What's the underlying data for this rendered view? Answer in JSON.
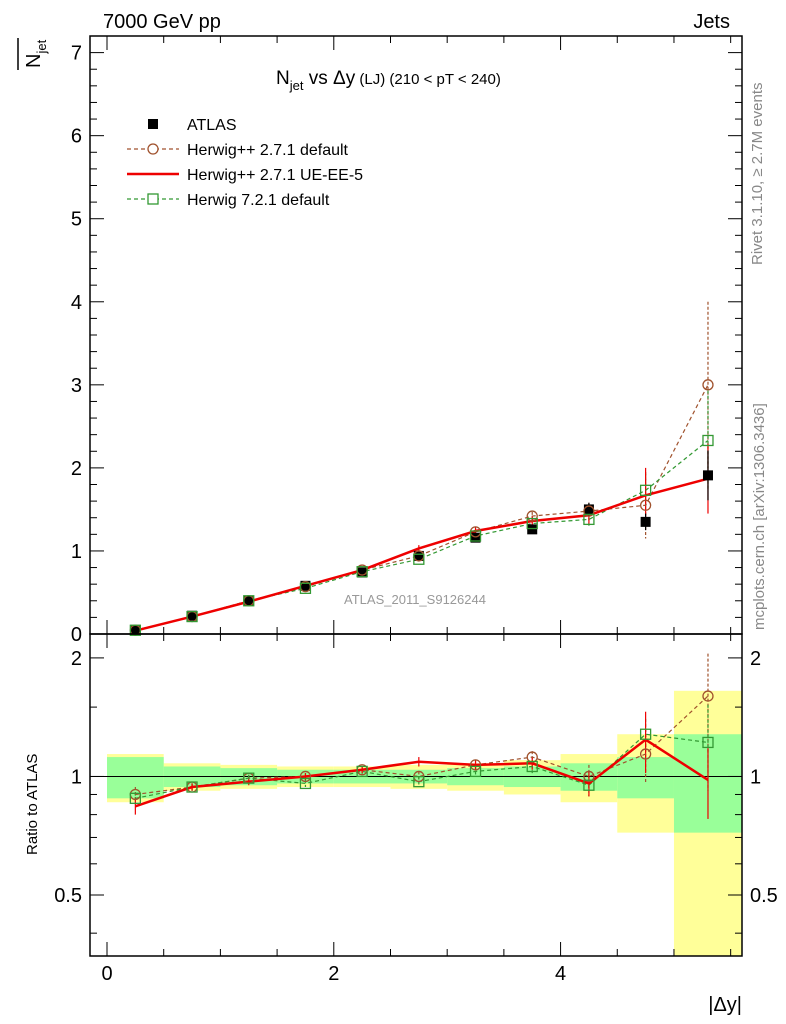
{
  "header": {
    "left": "7000 GeV pp",
    "right": "Jets"
  },
  "side_labels": {
    "rivet": "Rivet 3.1.10, ≥ 2.7M events",
    "mcplots": "mcplots.cern.ch [arXiv:1306.3436]"
  },
  "chart_data": {
    "type": "line",
    "title_main": "N",
    "title_sub": "jet",
    "title_rest": " vs Δy",
    "title_small": " (LJ) (210 < pT < 240)",
    "ylabel_top": "N",
    "ylabel_top_sub": "jet",
    "ylabel_ratio": "Ratio to ATLAS",
    "xlabel": "|Δy|",
    "analysis_label": "ATLAS_2011_S9126244",
    "xlim": [
      -0.15,
      5.6
    ],
    "ylim_main": [
      0,
      7.2
    ],
    "ylim_ratio": [
      0.35,
      2.3
    ],
    "x_ticks": [
      "0",
      "2",
      "4"
    ],
    "y_ticks_main": [
      "0",
      "1",
      "2",
      "3",
      "4",
      "5",
      "6",
      "7"
    ],
    "y_ticks_ratio": [
      "0.5",
      "1",
      "2"
    ],
    "x": [
      0.25,
      0.75,
      1.25,
      1.75,
      2.25,
      2.75,
      3.25,
      3.75,
      4.25,
      4.75,
      5.3
    ],
    "bin_edges": [
      0,
      0.5,
      1.0,
      1.5,
      2.0,
      2.5,
      3.0,
      3.5,
      4.0,
      4.5,
      5.0,
      5.6
    ],
    "legend": [
      "ATLAS",
      "Herwig++ 2.7.1 default",
      "Herwig++ 2.7.1 UE-EE-5",
      "Herwig 7.2.1 default"
    ],
    "series": [
      {
        "name": "ATLAS",
        "values": [
          0.05,
          0.22,
          0.4,
          0.58,
          0.74,
          0.94,
          1.16,
          1.26,
          1.5,
          1.35,
          1.91
        ],
        "errors": [
          0.01,
          0.01,
          0.01,
          0.02,
          0.02,
          0.03,
          0.04,
          0.05,
          0.08,
          0.1,
          0.3
        ],
        "color": "#000000"
      },
      {
        "name": "Herwig++ 2.7.1 default",
        "values": [
          0.045,
          0.21,
          0.4,
          0.57,
          0.77,
          0.94,
          1.23,
          1.42,
          1.48,
          1.55,
          3.0
        ],
        "errors": [
          0.005,
          0.01,
          0.01,
          0.02,
          0.02,
          0.03,
          0.04,
          0.05,
          0.1,
          0.4,
          1.0
        ],
        "ratio": [
          0.9,
          0.94,
          0.99,
          1.0,
          1.04,
          1.0,
          1.07,
          1.12,
          1.0,
          1.14,
          1.6
        ],
        "ratio_errors": [
          0.04,
          0.02,
          0.02,
          0.02,
          0.02,
          0.03,
          0.03,
          0.04,
          0.07,
          0.18,
          0.45
        ],
        "color": "#a0522d"
      },
      {
        "name": "Herwig++ 2.7.1 UE-EE-5",
        "values": [
          0.04,
          0.21,
          0.39,
          0.58,
          0.77,
          1.03,
          1.24,
          1.36,
          1.43,
          1.67,
          1.87
        ],
        "errors": [
          0.005,
          0.01,
          0.01,
          0.02,
          0.03,
          0.04,
          0.05,
          0.06,
          0.1,
          0.33,
          0.42
        ],
        "ratio": [
          0.84,
          0.94,
          0.97,
          1.0,
          1.04,
          1.09,
          1.07,
          1.08,
          0.96,
          1.24,
          0.98
        ],
        "ratio_errors": [
          0.04,
          0.02,
          0.02,
          0.02,
          0.02,
          0.03,
          0.03,
          0.04,
          0.07,
          0.22,
          0.2
        ],
        "color": "#ee0000"
      },
      {
        "name": "Herwig 7.2.1 default",
        "values": [
          0.045,
          0.21,
          0.4,
          0.55,
          0.75,
          0.9,
          1.18,
          1.33,
          1.38,
          1.73,
          2.33
        ],
        "errors": [
          0.005,
          0.01,
          0.01,
          0.02,
          0.02,
          0.03,
          0.04,
          0.05,
          0.08,
          0.2,
          0.6
        ],
        "ratio": [
          0.88,
          0.94,
          0.99,
          0.96,
          1.03,
          0.97,
          1.03,
          1.06,
          0.95,
          1.28,
          1.22
        ],
        "ratio_errors": [
          0.03,
          0.02,
          0.02,
          0.02,
          0.02,
          0.03,
          0.03,
          0.04,
          0.06,
          0.12,
          0.3
        ],
        "color": "#339933"
      }
    ],
    "data_band_inner": [
      0.12,
      0.06,
      0.05,
      0.04,
      0.04,
      0.04,
      0.05,
      0.06,
      0.08,
      0.12,
      0.28
    ],
    "data_band_outer": [
      0.14,
      0.08,
      0.07,
      0.06,
      0.06,
      0.07,
      0.08,
      0.1,
      0.14,
      0.28,
      0.65
    ],
    "band_colors": {
      "inner": "#99ff99",
      "outer": "#ffff99"
    }
  }
}
